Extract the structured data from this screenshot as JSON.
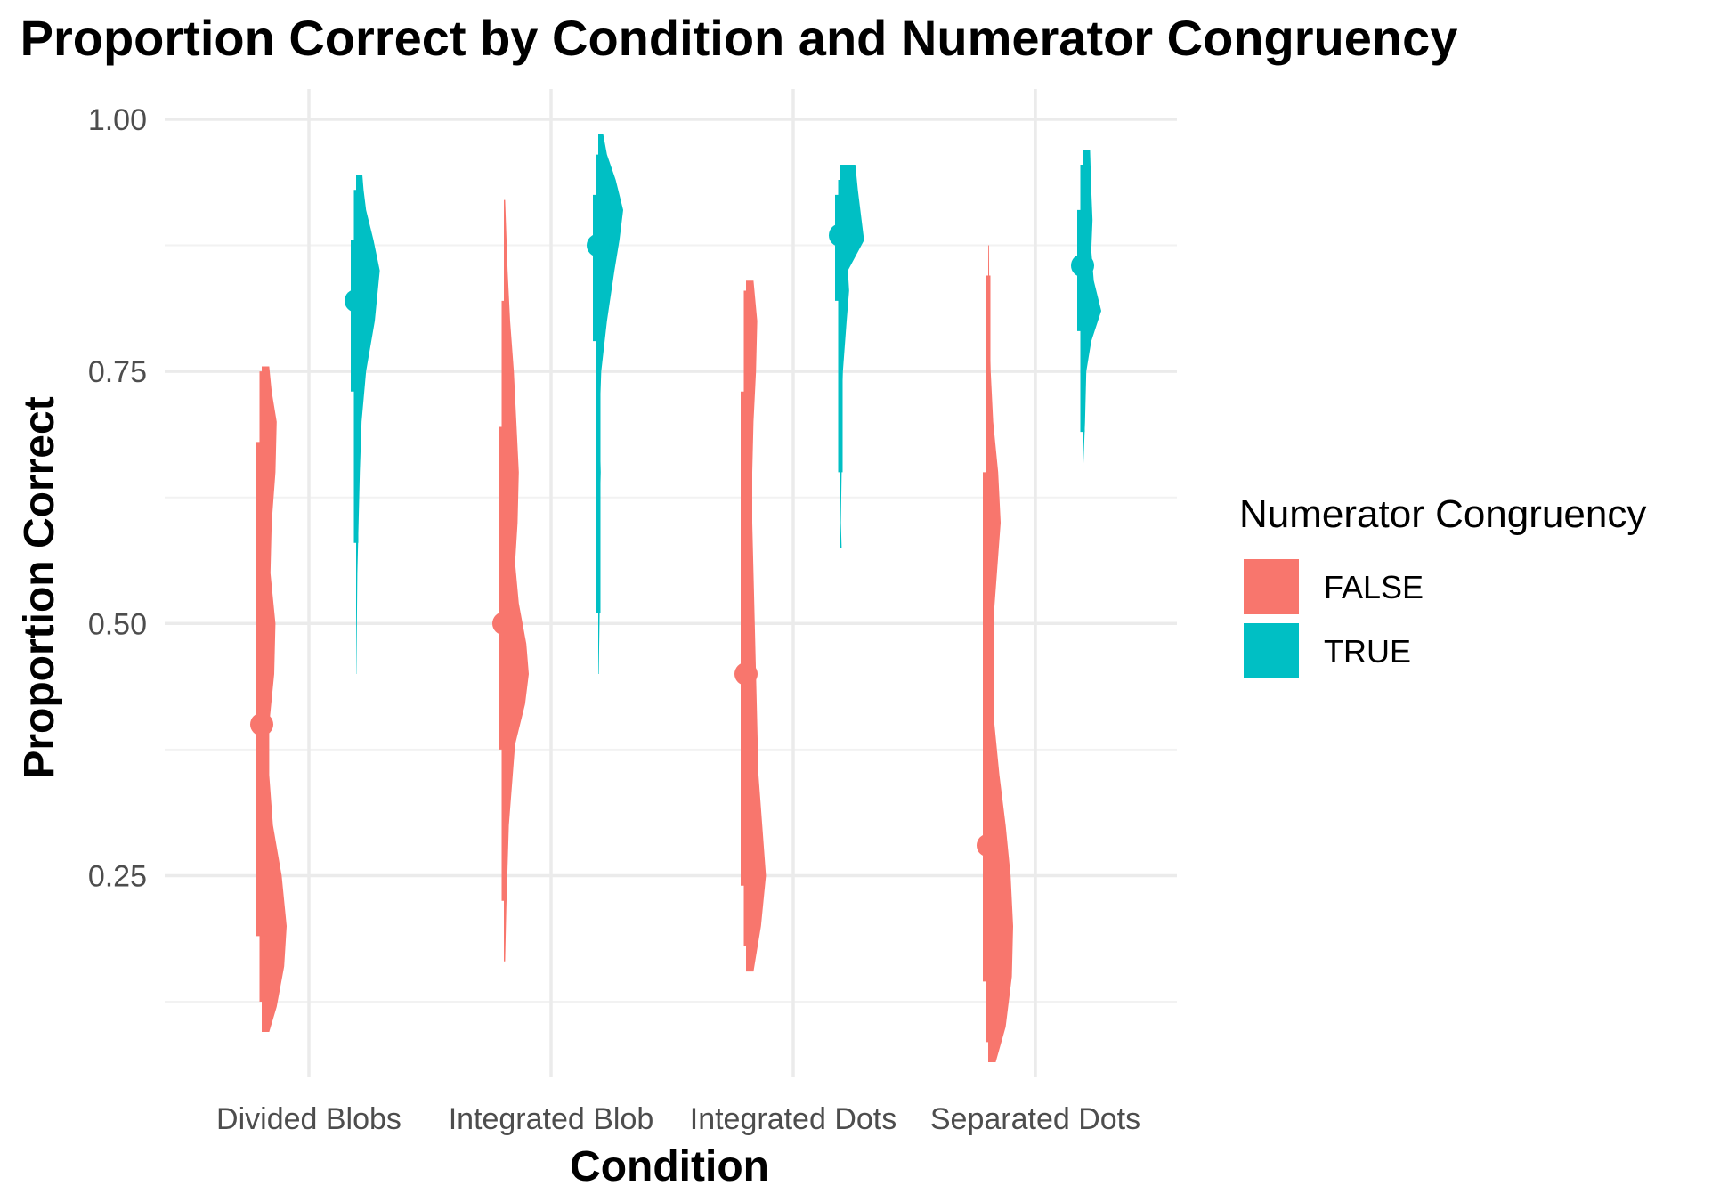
{
  "chart_data": {
    "type": "raincloud",
    "title": "Proportion Correct by Condition and Numerator Congruency",
    "xlabel": "Condition",
    "ylabel": "Proportion Correct",
    "ylim": [
      0.05,
      1.03
    ],
    "yticks": [
      0.25,
      0.5,
      0.75,
      1.0
    ],
    "ytick_labels": [
      "0.25",
      "0.50",
      "0.75",
      "1.00"
    ],
    "categories": [
      "Divided Blobs",
      "Integrated Blob",
      "Integrated Dots",
      "Separated Dots"
    ],
    "grid": "on",
    "legend": {
      "title": "Numerator Congruency",
      "position": "right",
      "entries": [
        {
          "label": "FALSE",
          "color": "#F8766D"
        },
        {
          "label": "TRUE",
          "color": "#00BFC4"
        }
      ]
    },
    "series": [
      {
        "name": "FALSE",
        "color": "#F8766D",
        "points": [
          {
            "category": "Divided Blobs",
            "median": 0.4,
            "q1": 0.19,
            "q3": 0.68,
            "lower": 0.125,
            "upper": 0.75,
            "min": 0.095,
            "max": 0.755,
            "density": [
              [
                0.095,
                0.3
              ],
              [
                0.12,
                0.6
              ],
              [
                0.16,
                0.9
              ],
              [
                0.2,
                1.0
              ],
              [
                0.25,
                0.8
              ],
              [
                0.3,
                0.45
              ],
              [
                0.35,
                0.3
              ],
              [
                0.4,
                0.3
              ],
              [
                0.45,
                0.5
              ],
              [
                0.5,
                0.55
              ],
              [
                0.55,
                0.35
              ],
              [
                0.6,
                0.4
              ],
              [
                0.65,
                0.55
              ],
              [
                0.7,
                0.6
              ],
              [
                0.73,
                0.4
              ],
              [
                0.755,
                0.3
              ]
            ]
          },
          {
            "category": "Integrated Blob",
            "median": 0.5,
            "q1": 0.375,
            "q3": 0.695,
            "lower": 0.225,
            "upper": 0.82,
            "min": 0.165,
            "max": 0.92,
            "density": [
              [
                0.165,
                0.05
              ],
              [
                0.22,
                0.1
              ],
              [
                0.3,
                0.2
              ],
              [
                0.38,
                0.45
              ],
              [
                0.42,
                0.85
              ],
              [
                0.45,
                1.0
              ],
              [
                0.48,
                0.9
              ],
              [
                0.52,
                0.6
              ],
              [
                0.56,
                0.45
              ],
              [
                0.6,
                0.55
              ],
              [
                0.65,
                0.6
              ],
              [
                0.7,
                0.5
              ],
              [
                0.75,
                0.4
              ],
              [
                0.8,
                0.25
              ],
              [
                0.85,
                0.15
              ],
              [
                0.92,
                0.05
              ]
            ]
          },
          {
            "category": "Integrated Dots",
            "median": 0.45,
            "q1": 0.24,
            "q3": 0.73,
            "lower": 0.18,
            "upper": 0.83,
            "min": 0.155,
            "max": 0.84,
            "density": [
              [
                0.155,
                0.3
              ],
              [
                0.2,
                0.6
              ],
              [
                0.25,
                0.8
              ],
              [
                0.3,
                0.65
              ],
              [
                0.35,
                0.5
              ],
              [
                0.4,
                0.45
              ],
              [
                0.45,
                0.4
              ],
              [
                0.5,
                0.35
              ],
              [
                0.55,
                0.3
              ],
              [
                0.6,
                0.25
              ],
              [
                0.65,
                0.25
              ],
              [
                0.7,
                0.3
              ],
              [
                0.75,
                0.4
              ],
              [
                0.8,
                0.45
              ],
              [
                0.84,
                0.3
              ]
            ]
          },
          {
            "category": "Separated Dots",
            "median": 0.28,
            "q1": 0.145,
            "q3": 0.65,
            "lower": 0.085,
            "upper": 0.845,
            "min": 0.065,
            "max": 0.875,
            "density": [
              [
                0.065,
                0.3
              ],
              [
                0.1,
                0.7
              ],
              [
                0.15,
                0.95
              ],
              [
                0.2,
                1.0
              ],
              [
                0.25,
                0.9
              ],
              [
                0.3,
                0.7
              ],
              [
                0.35,
                0.45
              ],
              [
                0.4,
                0.25
              ],
              [
                0.45,
                0.15
              ],
              [
                0.5,
                0.2
              ],
              [
                0.55,
                0.35
              ],
              [
                0.6,
                0.5
              ],
              [
                0.65,
                0.4
              ],
              [
                0.7,
                0.2
              ],
              [
                0.75,
                0.1
              ],
              [
                0.8,
                0.05
              ],
              [
                0.875,
                0.03
              ]
            ]
          }
        ]
      },
      {
        "name": "TRUE",
        "color": "#00BFC4",
        "points": [
          {
            "category": "Divided Blobs",
            "median": 0.82,
            "q1": 0.73,
            "q3": 0.88,
            "lower": 0.58,
            "upper": 0.93,
            "min": 0.45,
            "max": 0.945,
            "density": [
              [
                0.45,
                0.01
              ],
              [
                0.5,
                0.03
              ],
              [
                0.55,
                0.05
              ],
              [
                0.6,
                0.1
              ],
              [
                0.65,
                0.15
              ],
              [
                0.7,
                0.22
              ],
              [
                0.75,
                0.4
              ],
              [
                0.8,
                0.75
              ],
              [
                0.85,
                0.95
              ],
              [
                0.88,
                0.7
              ],
              [
                0.91,
                0.4
              ],
              [
                0.93,
                0.3
              ],
              [
                0.945,
                0.25
              ]
            ]
          },
          {
            "category": "Integrated Blob",
            "median": 0.875,
            "q1": 0.78,
            "q3": 0.925,
            "lower": 0.51,
            "upper": 0.965,
            "min": 0.45,
            "max": 0.985,
            "density": [
              [
                0.45,
                0.02
              ],
              [
                0.5,
                0.05
              ],
              [
                0.55,
                0.08
              ],
              [
                0.6,
                0.05
              ],
              [
                0.65,
                0.1
              ],
              [
                0.7,
                0.05
              ],
              [
                0.75,
                0.12
              ],
              [
                0.8,
                0.35
              ],
              [
                0.85,
                0.65
              ],
              [
                0.88,
                0.85
              ],
              [
                0.91,
                1.0
              ],
              [
                0.94,
                0.7
              ],
              [
                0.965,
                0.35
              ],
              [
                0.985,
                0.2
              ]
            ]
          },
          {
            "category": "Integrated Dots",
            "median": 0.885,
            "q1": 0.82,
            "q3": 0.925,
            "lower": 0.65,
            "upper": 0.94,
            "min": 0.575,
            "max": 0.955,
            "density": [
              [
                0.575,
                0.05
              ],
              [
                0.6,
                0.02
              ],
              [
                0.65,
                0.05
              ],
              [
                0.7,
                0.04
              ],
              [
                0.75,
                0.1
              ],
              [
                0.8,
                0.25
              ],
              [
                0.83,
                0.35
              ],
              [
                0.85,
                0.3
              ],
              [
                0.88,
                0.95
              ],
              [
                0.9,
                0.85
              ],
              [
                0.93,
                0.7
              ],
              [
                0.955,
                0.6
              ]
            ]
          },
          {
            "category": "Separated Dots",
            "median": 0.855,
            "q1": 0.79,
            "q3": 0.91,
            "lower": 0.69,
            "upper": 0.955,
            "min": 0.655,
            "max": 0.97,
            "density": [
              [
                0.655,
                0.03
              ],
              [
                0.7,
                0.1
              ],
              [
                0.75,
                0.15
              ],
              [
                0.78,
                0.35
              ],
              [
                0.81,
                0.75
              ],
              [
                0.84,
                0.45
              ],
              [
                0.87,
                0.35
              ],
              [
                0.9,
                0.4
              ],
              [
                0.93,
                0.35
              ],
              [
                0.97,
                0.3
              ]
            ]
          }
        ]
      }
    ]
  }
}
